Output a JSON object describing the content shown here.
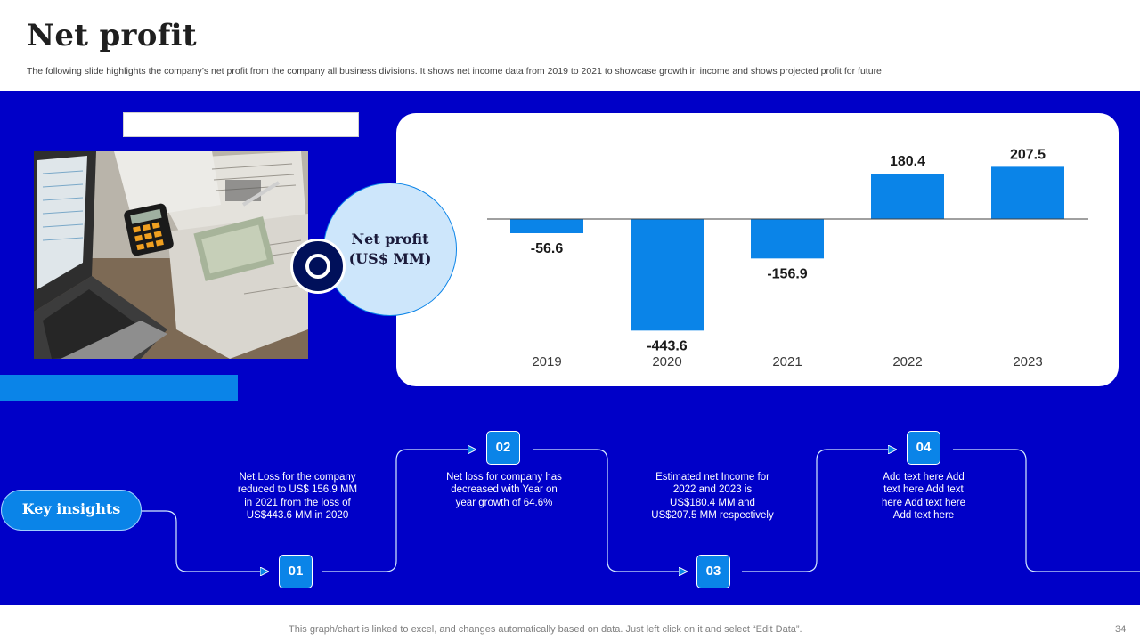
{
  "slide": {
    "title": "Net profit",
    "subtitle": "The following slide highlights the company’s net profit from the company all business divisions. It shows net income data from 2019 to 2021 to showcase  growth in income and shows projected profit for future",
    "chart_label": "Net profit (US$ MM)",
    "footer": "This graph/chart is linked to excel,  and changes automatically based on data. Just left click on it and select “Edit Data”.",
    "page_number": "34"
  },
  "colors": {
    "band": "#0000c8",
    "accent": "#0a84e8",
    "circle_fill": "#cde6fb",
    "ring": "#00105a"
  },
  "chart_data": {
    "type": "bar",
    "categories": [
      "2019",
      "2020",
      "2021",
      "2022",
      "2023"
    ],
    "values": [
      -56.6,
      -443.6,
      -156.9,
      180.4,
      207.5
    ],
    "value_labels": [
      "-56.6",
      "-443.6",
      "-156.9",
      "180.4",
      "207.5"
    ],
    "title": "",
    "xlabel": "",
    "ylabel": "",
    "ylim": [
      -443.6,
      207.5
    ],
    "grid": false,
    "legend": "none",
    "bar_color": "#0a84e8"
  },
  "insights": {
    "label": "Key insights",
    "steps": [
      {
        "number": "01",
        "text": "Net Loss for the company reduced to US$ 156.9 MM  in 2021 from the loss of US$443.6 MM  in 2020"
      },
      {
        "number": "02",
        "text": "Net loss for company has decreased with Year on year growth of 64.6%"
      },
      {
        "number": "03",
        "text": "Estimated net Income for  2022 and 2023 is US$180.4 MM  and US$207.5 MM respectively"
      },
      {
        "number": "04",
        "text": "Add text here Add text here Add text here Add text here Add text here"
      }
    ]
  }
}
